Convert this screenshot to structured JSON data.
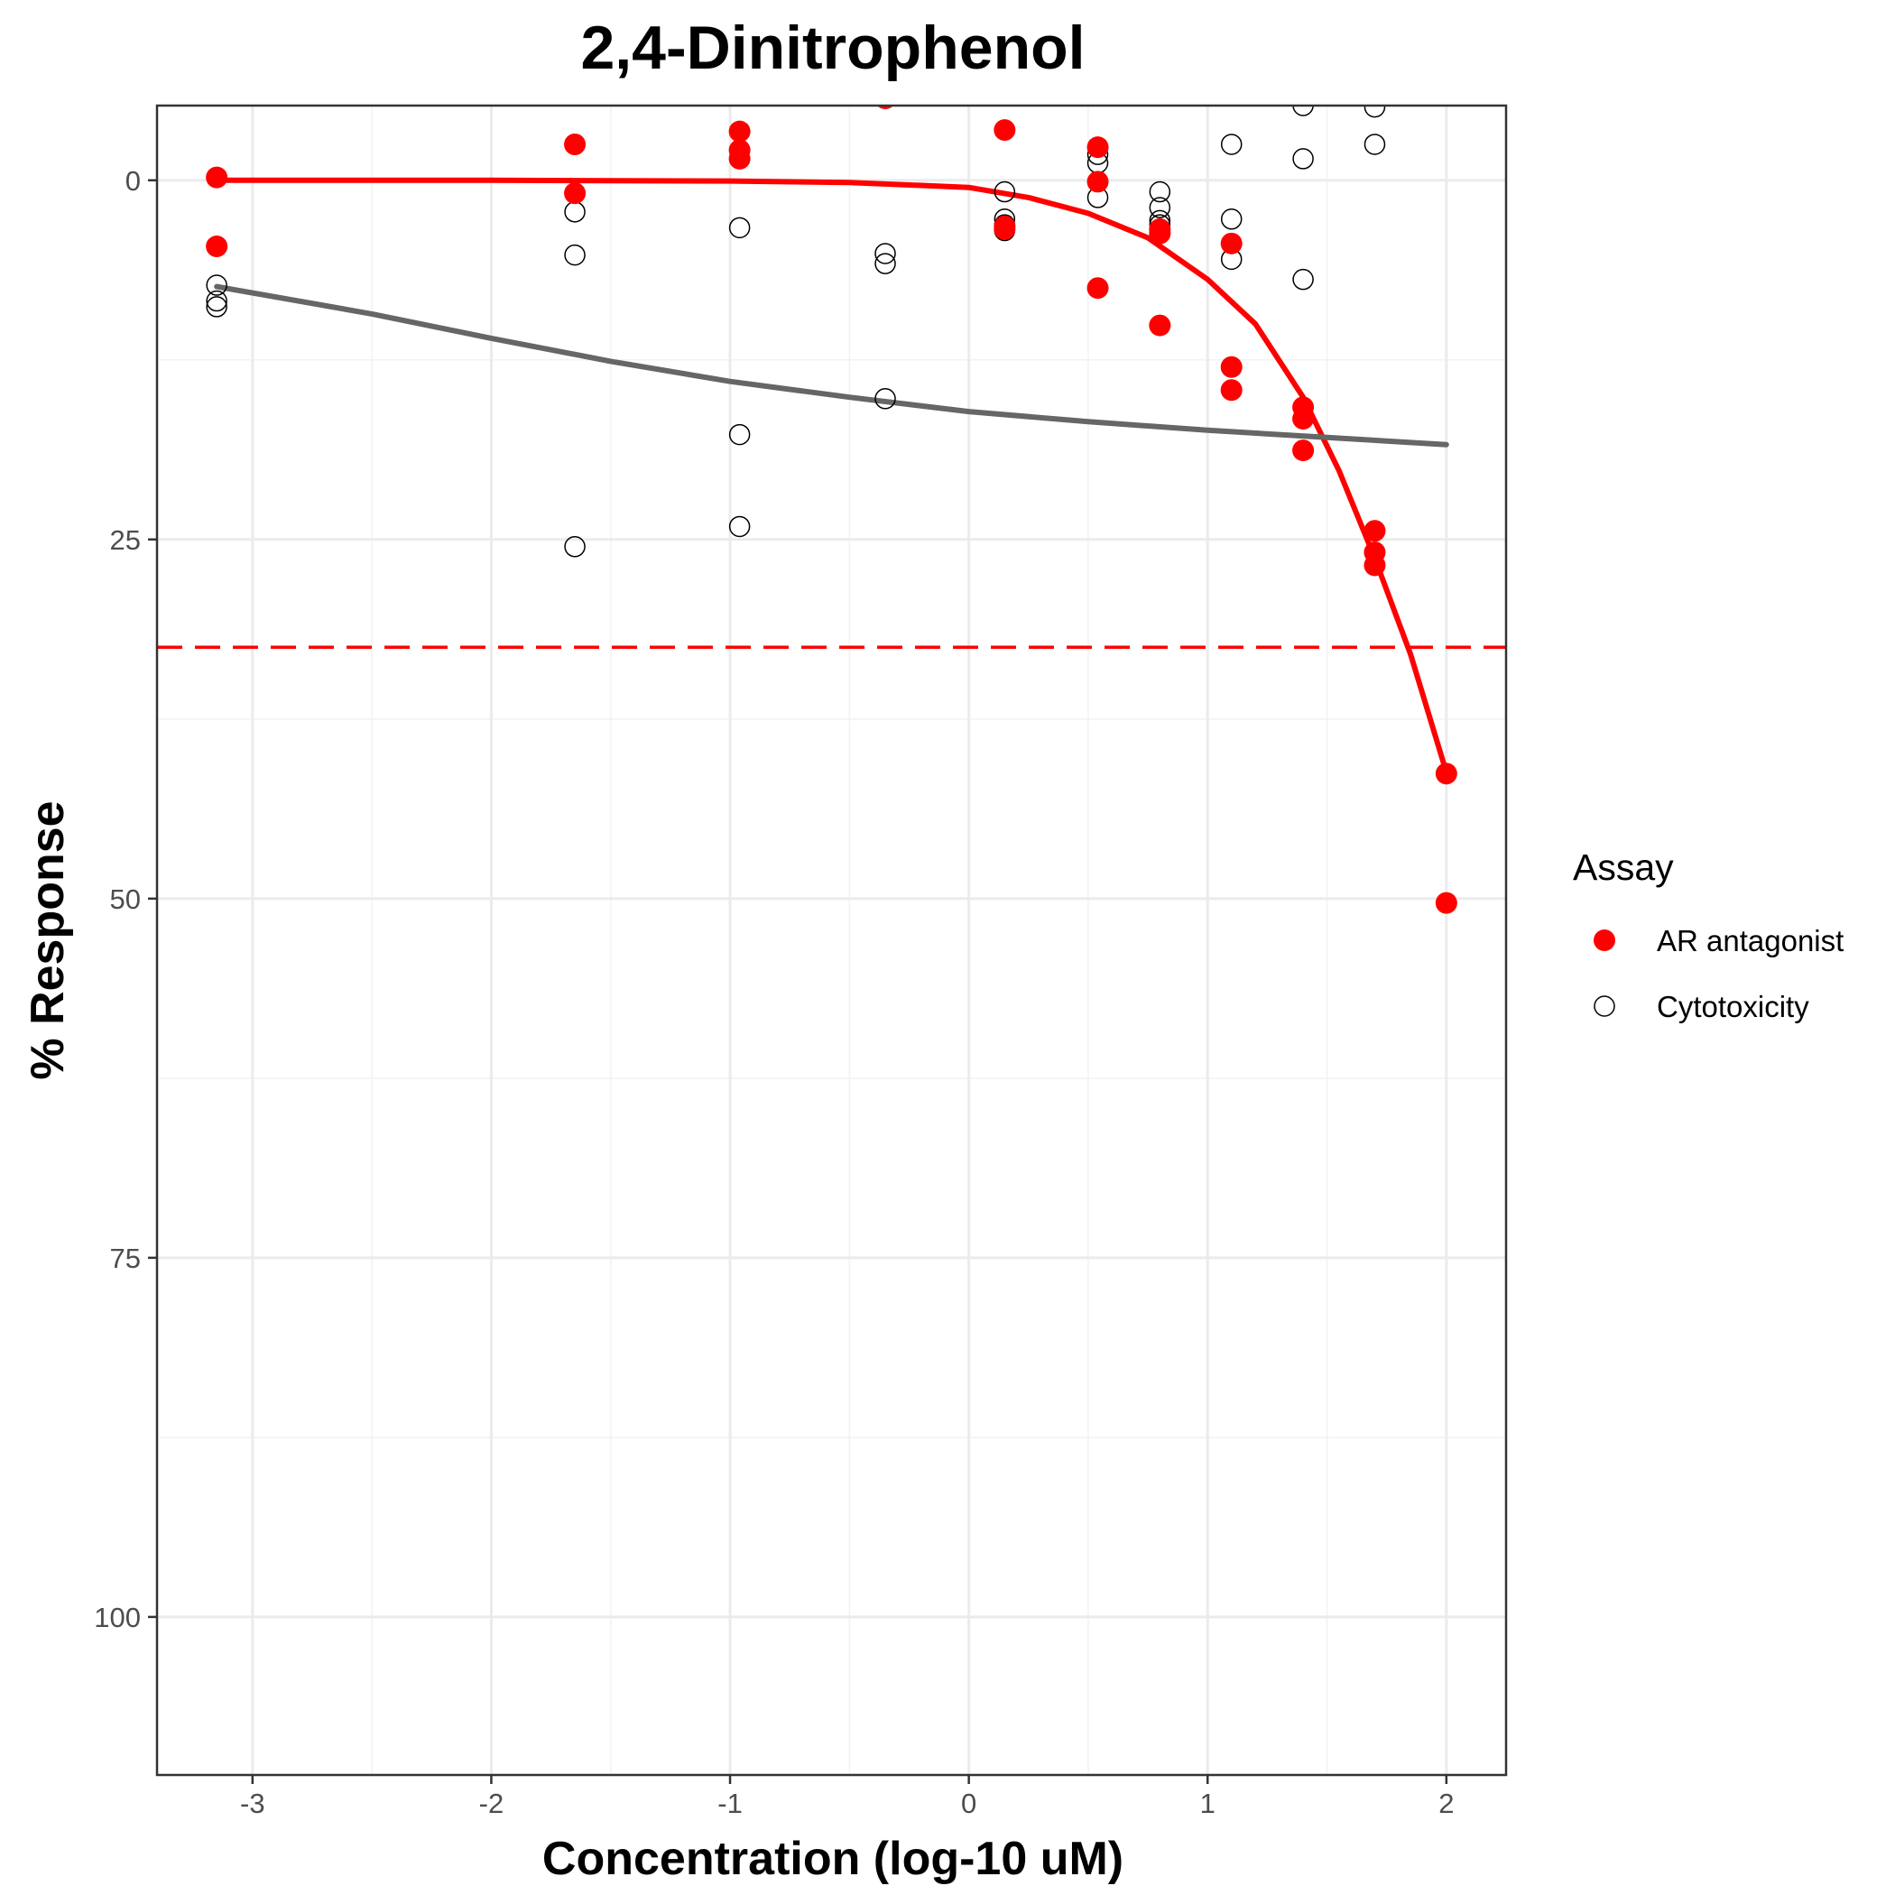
{
  "chart_data": {
    "type": "scatter",
    "title": "2,4-Dinitrophenol",
    "xlabel": "Concentration (log-10 uM)",
    "ylabel": "% Response",
    "xlim": [
      -3.4,
      2.25
    ],
    "ylim": [
      -5.2,
      111
    ],
    "y_reversed": true,
    "x_ticks": [
      -3,
      -2,
      -1,
      0,
      1,
      2
    ],
    "y_ticks": [
      0,
      25,
      50,
      75,
      100
    ],
    "x_tick_labels": [
      "-3",
      "-2",
      "-1",
      "0",
      "1",
      "2"
    ],
    "y_tick_labels": [
      "0",
      "25",
      "50",
      "75",
      "100"
    ],
    "grid": true,
    "legend": {
      "title": "Assay",
      "position": "right"
    },
    "threshold": {
      "y": 32.5,
      "color": "#ff0000",
      "style": "dashed"
    },
    "series": [
      {
        "name": "AR antagonist",
        "color": "#ff0000",
        "marker": "filled-circle",
        "points": [
          [
            -3.15,
            -0.2
          ],
          [
            -3.15,
            4.6
          ],
          [
            -1.65,
            -2.5
          ],
          [
            -1.65,
            0.9
          ],
          [
            -0.96,
            -3.4
          ],
          [
            -0.96,
            -2.1
          ],
          [
            -0.96,
            -1.5
          ],
          [
            -0.35,
            -5.7
          ],
          [
            0.15,
            -3.5
          ],
          [
            0.15,
            3.2
          ],
          [
            0.15,
            3.4
          ],
          [
            0.54,
            -2.3
          ],
          [
            0.54,
            0.1
          ],
          [
            0.54,
            7.5
          ],
          [
            0.8,
            3.4
          ],
          [
            0.8,
            3.7
          ],
          [
            0.8,
            10.1
          ],
          [
            1.1,
            4.4
          ],
          [
            1.1,
            13.0
          ],
          [
            1.1,
            14.6
          ],
          [
            1.4,
            15.8
          ],
          [
            1.4,
            16.6
          ],
          [
            1.4,
            18.8
          ],
          [
            1.7,
            24.4
          ],
          [
            1.7,
            25.9
          ],
          [
            1.7,
            26.8
          ],
          [
            2.0,
            41.3
          ],
          [
            2.0,
            50.3
          ]
        ],
        "fit": [
          [
            -3.15,
            0.0
          ],
          [
            -2.0,
            0.0
          ],
          [
            -1.0,
            0.05
          ],
          [
            -0.5,
            0.15
          ],
          [
            0.0,
            0.5
          ],
          [
            0.25,
            1.2
          ],
          [
            0.5,
            2.3
          ],
          [
            0.75,
            4.0
          ],
          [
            1.0,
            6.9
          ],
          [
            1.2,
            10.0
          ],
          [
            1.4,
            15.1
          ],
          [
            1.55,
            20.2
          ],
          [
            1.7,
            26.3
          ],
          [
            1.85,
            33.0
          ],
          [
            2.0,
            41.2
          ]
        ]
      },
      {
        "name": "Cytotoxicity",
        "color": "#000000",
        "marker": "open-circle",
        "points": [
          [
            -3.15,
            7.3
          ],
          [
            -3.15,
            8.4
          ],
          [
            -3.15,
            8.8
          ],
          [
            -1.65,
            2.2
          ],
          [
            -1.65,
            5.2
          ],
          [
            -1.65,
            25.5
          ],
          [
            -0.96,
            3.3
          ],
          [
            -0.96,
            17.7
          ],
          [
            -0.96,
            24.1
          ],
          [
            -0.35,
            5.1
          ],
          [
            -0.35,
            5.8
          ],
          [
            -0.35,
            15.2
          ],
          [
            0.15,
            0.8
          ],
          [
            0.15,
            2.7
          ],
          [
            0.15,
            3.1
          ],
          [
            0.15,
            3.5
          ],
          [
            0.54,
            -6.0
          ],
          [
            0.54,
            -1.8
          ],
          [
            0.54,
            -1.2
          ],
          [
            0.54,
            1.2
          ],
          [
            0.8,
            0.8
          ],
          [
            0.8,
            1.9
          ],
          [
            0.8,
            2.8
          ],
          [
            0.8,
            3.1
          ],
          [
            1.1,
            -2.5
          ],
          [
            1.1,
            2.7
          ],
          [
            1.1,
            5.5
          ],
          [
            1.4,
            -5.2
          ],
          [
            1.4,
            -1.5
          ],
          [
            1.4,
            6.9
          ],
          [
            1.7,
            -5.1
          ],
          [
            1.7,
            -2.5
          ]
        ],
        "fit": [
          [
            -3.15,
            7.4
          ],
          [
            -2.5,
            9.3
          ],
          [
            -2.0,
            11.0
          ],
          [
            -1.5,
            12.6
          ],
          [
            -1.0,
            14.0
          ],
          [
            -0.5,
            15.1
          ],
          [
            0.0,
            16.1
          ],
          [
            0.5,
            16.8
          ],
          [
            1.0,
            17.4
          ],
          [
            1.5,
            17.9
          ],
          [
            2.0,
            18.4
          ]
        ]
      }
    ]
  }
}
